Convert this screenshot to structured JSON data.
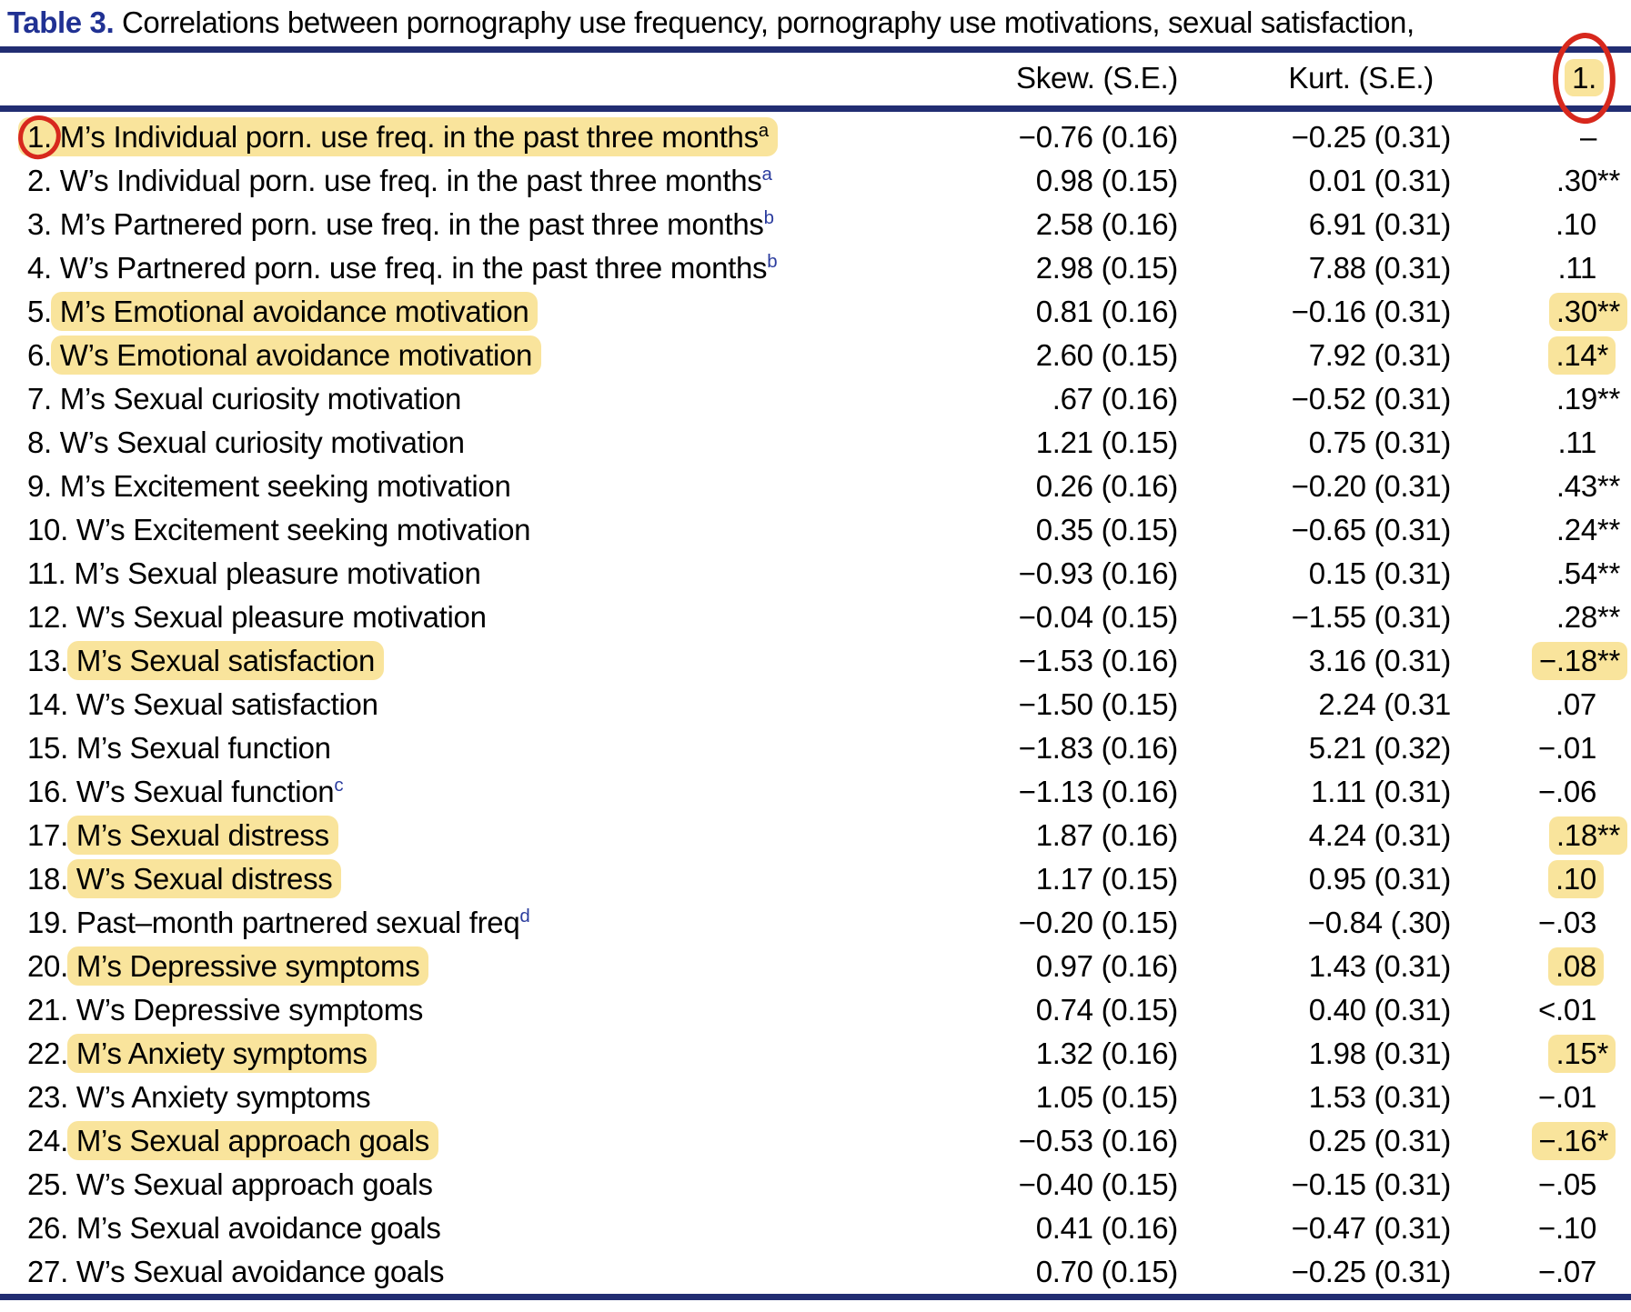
{
  "title": {
    "label": "Table 3.",
    "text": " Correlations between pornography use frequency, pornography use motivations, sexual satisfaction,"
  },
  "header": {
    "skew": "Skew. (S.E.)",
    "kurt": "Kurt. (S.E.)",
    "col1": "1."
  },
  "colors": {
    "rule_navy": "#222d72",
    "title_blue": "#203193",
    "highlight_yellow": "#f9e49c",
    "annotation_red": "#d7281d",
    "superscript_blue": "#2b3c9e"
  },
  "annotations": {
    "header_col1": "yellow highlight + hand-drawn red circle",
    "row1_number": "hand-drawn red circle"
  },
  "table": {
    "rows": [
      {
        "num": "1.",
        "label": "M’s Individual porn. use freq. in the past three months",
        "sup": "a",
        "sup_blue": false,
        "skew": "−0.76 (0.16)",
        "kurt": "−0.25 (0.31)",
        "corr": "–",
        "label_hl": true,
        "hl_includes_num": true,
        "corr_hl": false,
        "circled": true
      },
      {
        "num": "2.",
        "label": "W’s Individual porn. use freq. in the past three months",
        "sup": "a",
        "sup_blue": true,
        "skew": "0.98 (0.15)",
        "kurt": "0.01 (0.31)",
        "corr": ".30**",
        "label_hl": false,
        "hl_includes_num": false,
        "corr_hl": false,
        "circled": false
      },
      {
        "num": "3.",
        "label": "M’s Partnered porn. use freq. in the past three months",
        "sup": "b",
        "sup_blue": true,
        "skew": "2.58 (0.16)",
        "kurt": "6.91 (0.31)",
        "corr": ".10",
        "label_hl": false,
        "hl_includes_num": false,
        "corr_hl": false,
        "circled": false
      },
      {
        "num": "4.",
        "label": "W’s Partnered porn. use freq. in the past three months",
        "sup": "b",
        "sup_blue": true,
        "skew": "2.98 (0.15)",
        "kurt": "7.88 (0.31)",
        "corr": ".11",
        "label_hl": false,
        "hl_includes_num": false,
        "corr_hl": false,
        "circled": false
      },
      {
        "num": "5.",
        "label": "M’s Emotional avoidance motivation",
        "sup": "",
        "sup_blue": false,
        "skew": "0.81 (0.16)",
        "kurt": "−0.16 (0.31)",
        "corr": ".30**",
        "label_hl": true,
        "hl_includes_num": false,
        "corr_hl": true,
        "circled": false
      },
      {
        "num": "6.",
        "label": "W’s Emotional avoidance motivation",
        "sup": "",
        "sup_blue": false,
        "skew": "2.60 (0.15)",
        "kurt": "7.92 (0.31)",
        "corr": ".14*",
        "label_hl": true,
        "hl_includes_num": false,
        "corr_hl": true,
        "circled": false
      },
      {
        "num": "7.",
        "label": "M’s Sexual curiosity motivation",
        "sup": "",
        "sup_blue": false,
        "skew": ".67 (0.16)",
        "kurt": "−0.52 (0.31)",
        "corr": ".19**",
        "label_hl": false,
        "hl_includes_num": false,
        "corr_hl": false,
        "circled": false
      },
      {
        "num": "8.",
        "label": "W’s Sexual curiosity motivation",
        "sup": "",
        "sup_blue": false,
        "skew": "1.21 (0.15)",
        "kurt": "0.75 (0.31)",
        "corr": ".11",
        "label_hl": false,
        "hl_includes_num": false,
        "corr_hl": false,
        "circled": false
      },
      {
        "num": "9.",
        "label": "M’s Excitement seeking motivation",
        "sup": "",
        "sup_blue": false,
        "skew": "0.26 (0.16)",
        "kurt": "−0.20 (0.31)",
        "corr": ".43**",
        "label_hl": false,
        "hl_includes_num": false,
        "corr_hl": false,
        "circled": false
      },
      {
        "num": "10.",
        "label": "W’s Excitement seeking motivation",
        "sup": "",
        "sup_blue": false,
        "skew": "0.35 (0.15)",
        "kurt": "−0.65 (0.31)",
        "corr": ".24**",
        "label_hl": false,
        "hl_includes_num": false,
        "corr_hl": false,
        "circled": false
      },
      {
        "num": "11.",
        "label": "M’s Sexual pleasure motivation",
        "sup": "",
        "sup_blue": false,
        "skew": "−0.93 (0.16)",
        "kurt": "0.15 (0.31)",
        "corr": ".54**",
        "label_hl": false,
        "hl_includes_num": false,
        "corr_hl": false,
        "circled": false
      },
      {
        "num": "12.",
        "label": "W’s Sexual pleasure motivation",
        "sup": "",
        "sup_blue": false,
        "skew": "−0.04 (0.15)",
        "kurt": "−1.55 (0.31)",
        "corr": ".28**",
        "label_hl": false,
        "hl_includes_num": false,
        "corr_hl": false,
        "circled": false
      },
      {
        "num": "13.",
        "label": "M’s Sexual satisfaction",
        "sup": "",
        "sup_blue": false,
        "skew": "−1.53 (0.16)",
        "kurt": "3.16 (0.31)",
        "corr": "−.18**",
        "label_hl": true,
        "hl_includes_num": false,
        "corr_hl": true,
        "circled": false
      },
      {
        "num": "14.",
        "label": "W’s Sexual satisfaction",
        "sup": "",
        "sup_blue": false,
        "skew": "−1.50 (0.15)",
        "kurt": "2.24 (0.31",
        "corr": ".07",
        "label_hl": false,
        "hl_includes_num": false,
        "corr_hl": false,
        "circled": false
      },
      {
        "num": "15.",
        "label": "M’s Sexual function",
        "sup": "",
        "sup_blue": false,
        "skew": "−1.83 (0.16)",
        "kurt": "5.21 (0.32)",
        "corr": "−.01",
        "label_hl": false,
        "hl_includes_num": false,
        "corr_hl": false,
        "circled": false
      },
      {
        "num": "16.",
        "label": "W’s Sexual function",
        "sup": "c",
        "sup_blue": true,
        "skew": "−1.13 (0.16)",
        "kurt": "1.11 (0.31)",
        "corr": "−.06",
        "label_hl": false,
        "hl_includes_num": false,
        "corr_hl": false,
        "circled": false
      },
      {
        "num": "17.",
        "label": "M’s Sexual distress",
        "sup": "",
        "sup_blue": false,
        "skew": "1.87 (0.16)",
        "kurt": "4.24 (0.31)",
        "corr": ".18**",
        "label_hl": true,
        "hl_includes_num": false,
        "corr_hl": true,
        "circled": false
      },
      {
        "num": "18.",
        "label": "W’s Sexual distress",
        "sup": "",
        "sup_blue": false,
        "skew": "1.17 (0.15)",
        "kurt": "0.95 (0.31)",
        "corr": ".10",
        "label_hl": true,
        "hl_includes_num": false,
        "corr_hl": true,
        "circled": false
      },
      {
        "num": "19.",
        "label": "Past–month partnered sexual freq",
        "sup": "d",
        "sup_blue": true,
        "skew": "−0.20 (0.15)",
        "kurt": "−0.84 (.30)",
        "corr": "−.03",
        "label_hl": false,
        "hl_includes_num": false,
        "corr_hl": false,
        "circled": false
      },
      {
        "num": "20.",
        "label": "M’s Depressive symptoms",
        "sup": "",
        "sup_blue": false,
        "skew": "0.97 (0.16)",
        "kurt": "1.43 (0.31)",
        "corr": ".08",
        "label_hl": true,
        "hl_includes_num": false,
        "corr_hl": true,
        "circled": false
      },
      {
        "num": "21.",
        "label": "W’s Depressive symptoms",
        "sup": "",
        "sup_blue": false,
        "skew": "0.74 (0.15)",
        "kurt": "0.40 (0.31)",
        "corr": "<.01",
        "label_hl": false,
        "hl_includes_num": false,
        "corr_hl": false,
        "circled": false
      },
      {
        "num": "22.",
        "label": "M’s Anxiety symptoms",
        "sup": "",
        "sup_blue": false,
        "skew": "1.32 (0.16)",
        "kurt": "1.98 (0.31)",
        "corr": ".15*",
        "label_hl": true,
        "hl_includes_num": false,
        "corr_hl": true,
        "circled": false
      },
      {
        "num": "23.",
        "label": "W’s Anxiety symptoms",
        "sup": "",
        "sup_blue": false,
        "skew": "1.05 (0.15)",
        "kurt": "1.53 (0.31)",
        "corr": "−.01",
        "label_hl": false,
        "hl_includes_num": false,
        "corr_hl": false,
        "circled": false
      },
      {
        "num": "24.",
        "label": "M’s Sexual approach goals",
        "sup": "",
        "sup_blue": false,
        "skew": "−0.53 (0.16)",
        "kurt": "0.25 (0.31)",
        "corr": "−.16*",
        "label_hl": true,
        "hl_includes_num": false,
        "corr_hl": true,
        "circled": false
      },
      {
        "num": "25.",
        "label": "W’s Sexual approach goals",
        "sup": "",
        "sup_blue": false,
        "skew": "−0.40 (0.15)",
        "kurt": "−0.15 (0.31)",
        "corr": "−.05",
        "label_hl": false,
        "hl_includes_num": false,
        "corr_hl": false,
        "circled": false
      },
      {
        "num": "26.",
        "label": "M’s Sexual avoidance goals",
        "sup": "",
        "sup_blue": false,
        "skew": "0.41 (0.16)",
        "kurt": "−0.47 (0.31)",
        "corr": "−.10",
        "label_hl": false,
        "hl_includes_num": false,
        "corr_hl": false,
        "circled": false
      },
      {
        "num": "27.",
        "label": "W’s Sexual avoidance goals",
        "sup": "",
        "sup_blue": false,
        "skew": "0.70 (0.15)",
        "kurt": "−0.25 (0.31)",
        "corr": "−.07",
        "label_hl": false,
        "hl_includes_num": false,
        "corr_hl": false,
        "circled": false
      }
    ]
  }
}
